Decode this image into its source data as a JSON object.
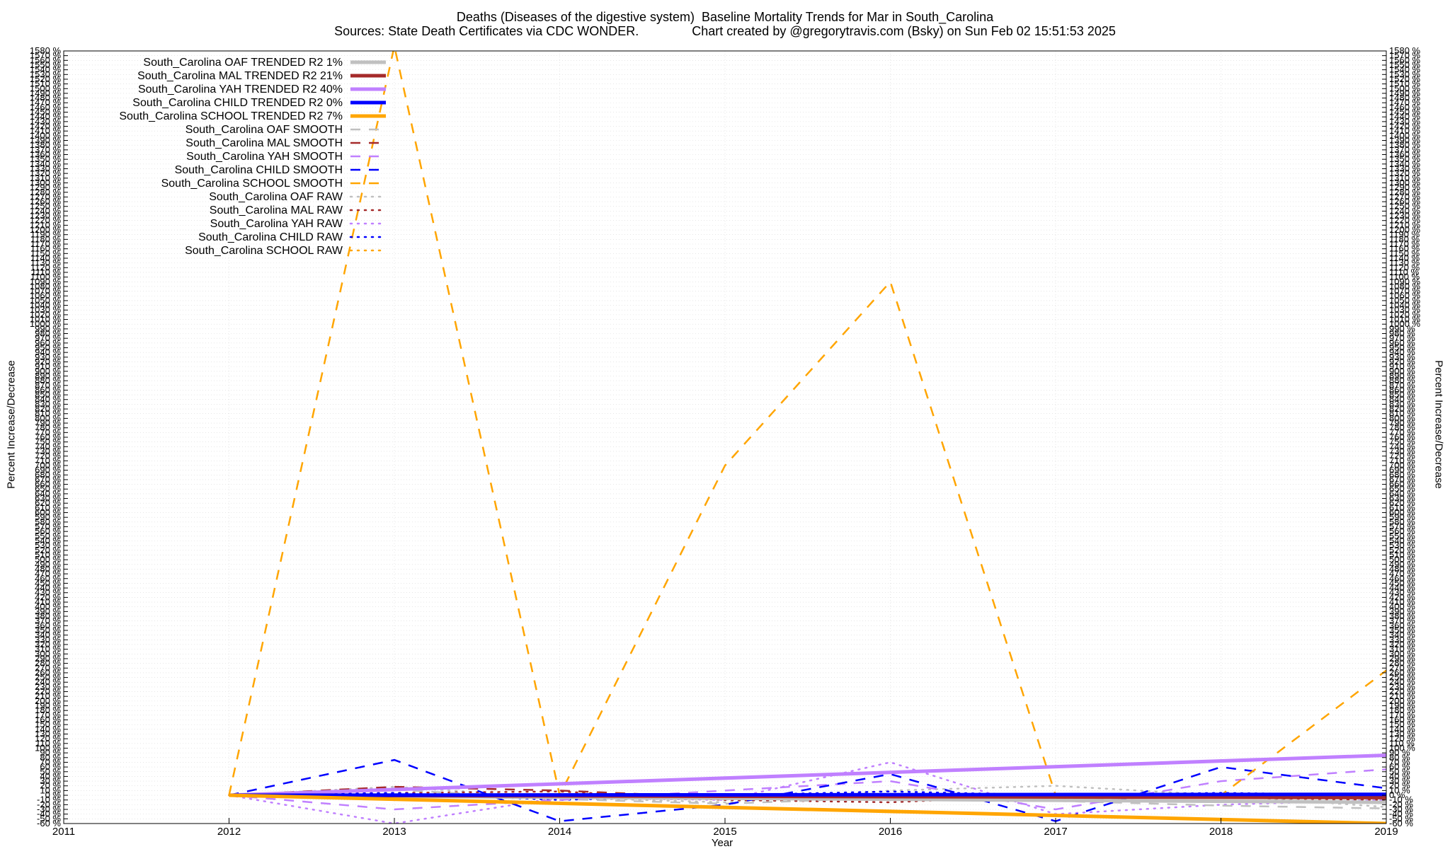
{
  "chart_data": {
    "type": "line",
    "title": "Deaths (Diseases of the digestive system)  Baseline Mortality Trends for Mar in South_Carolina",
    "subtitle": "Sources: State Death Certificates via CDC WONDER.               Chart created by @gregorytravis.com (Bsky) on Sun Feb 02 15:51:53 2025",
    "xlabel": "Year",
    "ylabel": "Percent Increase/Decrease",
    "xlim": [
      2011,
      2019
    ],
    "ylim": [
      -60,
      1580
    ],
    "x_ticks": [
      "2011",
      "2012",
      "2013",
      "2014",
      "2015",
      "2016",
      "2017",
      "2018",
      "2019"
    ],
    "y_tick_step": 10,
    "y_tick_suffix": " %",
    "grid": true,
    "legend_position": "top-left",
    "series": [
      {
        "name": "South_Carolina OAF TRENDED R2   1%",
        "color": "#c0c0c0",
        "style": "trend",
        "x": [
          2012,
          2019
        ],
        "y": [
          0,
          -15
        ]
      },
      {
        "name": "South_Carolina MAL TRENDED R2  21%",
        "color": "#a52a2a",
        "style": "trend",
        "x": [
          2012,
          2019
        ],
        "y": [
          0,
          -5
        ]
      },
      {
        "name": "South_Carolina YAH TRENDED R2  40%",
        "color": "#c080ff",
        "style": "trend",
        "x": [
          2012,
          2019
        ],
        "y": [
          0,
          85
        ]
      },
      {
        "name": "South_Carolina CHILD TRENDED R2   0%",
        "color": "#0000ff",
        "style": "trend",
        "x": [
          2012,
          2019
        ],
        "y": [
          0,
          2
        ]
      },
      {
        "name": "South_Carolina SCHOOL TRENDED R2   7%",
        "color": "#ffa500",
        "style": "trend",
        "x": [
          2012,
          2019
        ],
        "y": [
          0,
          -60
        ]
      },
      {
        "name": "South_Carolina OAF SMOOTH",
        "color": "#c0c0c0",
        "style": "smooth",
        "x": [
          2012,
          2013,
          2014,
          2015,
          2016,
          2017,
          2018,
          2019
        ],
        "y": [
          0,
          12,
          -8,
          -18,
          -5,
          -12,
          -22,
          -28
        ]
      },
      {
        "name": "South_Carolina MAL SMOOTH",
        "color": "#a52a2a",
        "style": "smooth",
        "x": [
          2012,
          2013,
          2014,
          2015,
          2016,
          2017,
          2018,
          2019
        ],
        "y": [
          0,
          18,
          10,
          -5,
          2,
          -8,
          -3,
          0
        ]
      },
      {
        "name": "South_Carolina YAH SMOOTH",
        "color": "#c080ff",
        "style": "smooth",
        "x": [
          2012,
          2013,
          2014,
          2015,
          2016,
          2017,
          2018,
          2019
        ],
        "y": [
          0,
          -30,
          -10,
          10,
          30,
          -30,
          30,
          55
        ]
      },
      {
        "name": "South_Carolina CHILD SMOOTH",
        "color": "#0000ff",
        "style": "smooth",
        "x": [
          2012,
          2013,
          2014,
          2015,
          2016,
          2017,
          2018,
          2019
        ],
        "y": [
          0,
          75,
          -55,
          -20,
          45,
          -55,
          60,
          15
        ]
      },
      {
        "name": "South_Carolina SCHOOL SMOOTH",
        "color": "#ffa500",
        "style": "smooth",
        "x": [
          2012,
          2013,
          2014,
          2015,
          2016,
          2017,
          2018,
          2019
        ],
        "y": [
          0,
          1590,
          0,
          700,
          1090,
          0,
          0,
          265
        ]
      },
      {
        "name": "South_Carolina OAF RAW",
        "color": "#c0c0c0",
        "style": "raw",
        "x": [
          2012,
          2013,
          2014,
          2015,
          2016,
          2017,
          2018,
          2019
        ],
        "y": [
          0,
          18,
          -5,
          -15,
          10,
          20,
          0,
          -25
        ]
      },
      {
        "name": "South_Carolina MAL RAW",
        "color": "#a52a2a",
        "style": "raw",
        "x": [
          2012,
          2013,
          2014,
          2015,
          2016,
          2017,
          2018,
          2019
        ],
        "y": [
          0,
          5,
          8,
          -10,
          -15,
          0,
          -5,
          -10
        ]
      },
      {
        "name": "South_Carolina YAH RAW",
        "color": "#c080ff",
        "style": "raw",
        "x": [
          2012,
          2013,
          2014,
          2015,
          2016,
          2017,
          2018,
          2019
        ],
        "y": [
          0,
          -60,
          -5,
          -10,
          70,
          -40,
          -20,
          -10
        ]
      },
      {
        "name": "South_Carolina CHILD RAW",
        "color": "#0000ff",
        "style": "raw",
        "x": [
          2012,
          2013,
          2014,
          2015,
          2016,
          2017,
          2018,
          2019
        ],
        "y": [
          0,
          5,
          -10,
          0,
          8,
          0,
          5,
          0
        ]
      },
      {
        "name": "South_Carolina SCHOOL RAW",
        "color": "#ffa500",
        "style": "raw",
        "x": [
          2012,
          2013,
          2014,
          2015,
          2016,
          2017,
          2018,
          2019
        ],
        "y": [
          0,
          0,
          -5,
          0,
          0,
          0,
          0,
          0
        ]
      }
    ]
  }
}
